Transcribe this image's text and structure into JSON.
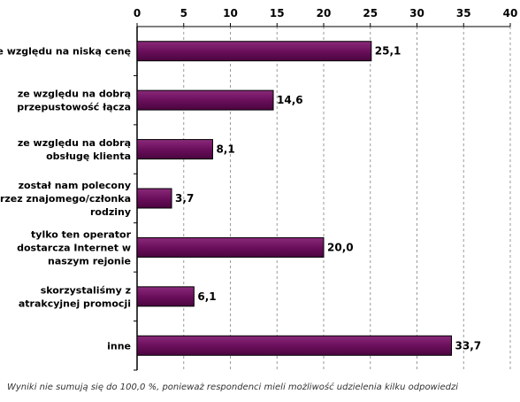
{
  "chart_data": {
    "type": "bar",
    "orientation": "horizontal",
    "title": "",
    "xlabel": "",
    "ylabel": "",
    "xlim": [
      0,
      40
    ],
    "ticks": [
      0,
      5,
      10,
      15,
      20,
      25,
      30,
      35,
      40
    ],
    "tick_labels": [
      "0",
      "5",
      "10",
      "15",
      "20",
      "25",
      "30",
      "35",
      "40"
    ],
    "grid": "dashed vertical",
    "axis_position": "top",
    "categories": [
      [
        "ze względu na niską cenę"
      ],
      [
        "ze względu na dobrą",
        "przepustowość łącza"
      ],
      [
        "ze względu na dobrą",
        "obsługę klienta"
      ],
      [
        "został nam polecony",
        "przez znajomego/członka",
        "rodziny"
      ],
      [
        "tylko ten operator",
        "dostarcza Internet w",
        "naszym rejonie"
      ],
      [
        "skorzystaliśmy z",
        "atrakcyjnej promocji"
      ],
      [
        "inne"
      ]
    ],
    "values": [
      25.1,
      14.6,
      8.1,
      3.7,
      20.0,
      6.1,
      33.7
    ],
    "value_labels": [
      "25,1",
      "14,6",
      "8,1",
      "3,7",
      "20,0",
      "6,1",
      "33,7"
    ],
    "bar_color": "#6b0f5c",
    "footnote": "Wyniki nie sumują się do 100,0 %, ponieważ respondenci mieli możliwość udzielenia kilku odpowiedzi"
  }
}
